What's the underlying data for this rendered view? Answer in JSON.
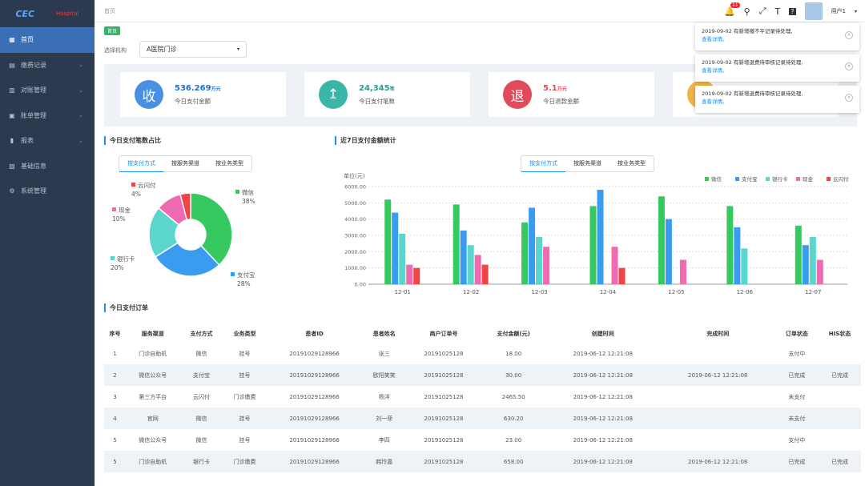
{
  "sidebar": {
    "logo_main": "CEC",
    "logo_sub": "中国电子",
    "logo_right": "Hospital",
    "items": [
      {
        "label": "首页",
        "icon": "grid-icon",
        "active": true,
        "chevron": false
      },
      {
        "label": "缴费记录",
        "icon": "record-icon",
        "active": false,
        "chevron": true
      },
      {
        "label": "对账管理",
        "icon": "reconcile-icon",
        "active": false,
        "chevron": true
      },
      {
        "label": "账单管理",
        "icon": "bill-icon",
        "active": false,
        "chevron": true
      },
      {
        "label": "报表",
        "icon": "chart-icon",
        "active": false,
        "chevron": true
      },
      {
        "label": "基础信息",
        "icon": "info-icon",
        "active": false,
        "chevron": false
      },
      {
        "label": "系统管理",
        "icon": "gear-icon",
        "active": false,
        "chevron": false
      }
    ]
  },
  "header": {
    "breadcrumb": "首页",
    "badge_count": "11",
    "user_name": "用户1"
  },
  "page": {
    "home_tag": "首页",
    "org_label": "选择机构",
    "org_value": "A医院门诊"
  },
  "stats": [
    {
      "icon": "收",
      "value": "536.269",
      "unit": "万元",
      "label": "今日支付金额",
      "color": "#4a90e2",
      "val_color": "#1f6fc8"
    },
    {
      "icon": "↥",
      "value": "24,345",
      "unit": "笔",
      "label": "今日支付笔数",
      "color": "#3ab5a8",
      "val_color": "#2a9d8f"
    },
    {
      "icon": "退",
      "value": "5.1",
      "unit": "万元",
      "label": "今日退款金额",
      "color": "#e04a5a",
      "val_color": "#e04a5a"
    },
    {
      "icon": "",
      "value": "",
      "unit": "",
      "label": "",
      "color": "#f0b34a",
      "val_color": "#f0b34a"
    }
  ],
  "pie_section": {
    "title": "今日支付笔数占比",
    "tabs": [
      "按支付方式",
      "按服务渠道",
      "按业务类型"
    ]
  },
  "bar_section": {
    "title": "近7日支付金额统计",
    "tabs": [
      "按支付方式",
      "按服务渠道",
      "按业务类型"
    ],
    "unit_label": "单位(元)"
  },
  "notifications": [
    {
      "text": "2019-09-02 有新增缴不平记录待处理,",
      "link": "查看详情。"
    },
    {
      "text": "2019-09-02 有新增退费待审核记录待处理,",
      "link": "查看详情。"
    },
    {
      "text": "2019-09-02 有新增退费待审核记录待处理,",
      "link": "查看详情。"
    }
  ],
  "chart_data": [
    {
      "type": "pie",
      "title": "今日支付笔数占比",
      "slices": [
        {
          "name": "微信",
          "value": 38,
          "label": "38%",
          "color": "#36c95f"
        },
        {
          "name": "支付宝",
          "value": 28,
          "label": "28%",
          "color": "#3a9cef"
        },
        {
          "name": "银行卡",
          "value": 20,
          "label": "20%",
          "color": "#5bd6cc"
        },
        {
          "name": "现金",
          "value": 10,
          "label": "10%",
          "color": "#ef6ab0"
        },
        {
          "name": "云闪付",
          "value": 4,
          "label": "4%",
          "color": "#ef4545"
        }
      ]
    },
    {
      "type": "bar",
      "title": "近7日支付金额统计",
      "ylabel": "单位(元)",
      "ylim": [
        0,
        6000
      ],
      "yticks": [
        "0.00",
        "1000.00",
        "2000.00",
        "3000.00",
        "4000.00",
        "5000.00",
        "6000.00"
      ],
      "categories": [
        "12-01",
        "12-02",
        "12-03",
        "12-04",
        "12-05",
        "12-06",
        "12-07"
      ],
      "series": [
        {
          "name": "微信",
          "color": "#36c95f",
          "values": [
            5200,
            4900,
            3800,
            4800,
            5400,
            4800,
            3600
          ]
        },
        {
          "name": "支付宝",
          "color": "#3a9cef",
          "values": [
            4400,
            3300,
            4700,
            5800,
            4000,
            3500,
            2400
          ]
        },
        {
          "name": "银行卡",
          "color": "#5bd6cc",
          "values": [
            3100,
            2400,
            2900,
            null,
            null,
            2200,
            2900
          ]
        },
        {
          "name": "现金",
          "color": "#ef6ab0",
          "values": [
            1200,
            1800,
            2300,
            2300,
            1500,
            null,
            1500
          ]
        },
        {
          "name": "云闪付",
          "color": "#ef4545",
          "values": [
            1000,
            1200,
            null,
            1000,
            null,
            null,
            null
          ]
        }
      ]
    }
  ],
  "orders": {
    "title": "今日支付订单",
    "columns": [
      "序号",
      "服务渠道",
      "支付方式",
      "业务类型",
      "患者ID",
      "患者姓名",
      "商户订单号",
      "支付金额(元)",
      "创建时间",
      "完成时间",
      "订单状态",
      "HIS状态"
    ],
    "rows": [
      [
        "1",
        "门诊自助机",
        "微信",
        "挂号",
        "20191029128966",
        "张三",
        "20191025128",
        "18.00",
        "2019-06-12 12:21:08",
        "",
        "支付中",
        ""
      ],
      [
        "2",
        "微信公众号",
        "支付宝",
        "挂号",
        "20191029128966",
        "欧阳笑笑",
        "20191025128",
        "30.00",
        "2019-06-12 12:21:08",
        "2019-06-12 12:21:08",
        "已完成",
        "已完成"
      ],
      [
        "3",
        "第三方平台",
        "云闪付",
        "门诊缴费",
        "20191029128966",
        "杨洋",
        "20191025128",
        "2465.50",
        "2019-06-12 12:21:08",
        "",
        "未支付",
        ""
      ],
      [
        "4",
        "官网",
        "微信",
        "挂号",
        "20191029128966",
        "刘一菲",
        "20191025128",
        "630.20",
        "2019-06-12 12:21:08",
        "",
        "未支付",
        ""
      ],
      [
        "5",
        "微信公众号",
        "微信",
        "挂号",
        "20191029128966",
        "李四",
        "20191025128",
        "23.00",
        "2019-06-12 12:21:08",
        "",
        "支付中",
        ""
      ],
      [
        "5",
        "门诊自助机",
        "银行卡",
        "门诊缴费",
        "20191029128966",
        "韩玲嘉",
        "20191025128",
        "658.00",
        "2019-06-12 12:21:08",
        "2019-06-12 12:21:08",
        "已完成",
        "已完成"
      ]
    ]
  }
}
